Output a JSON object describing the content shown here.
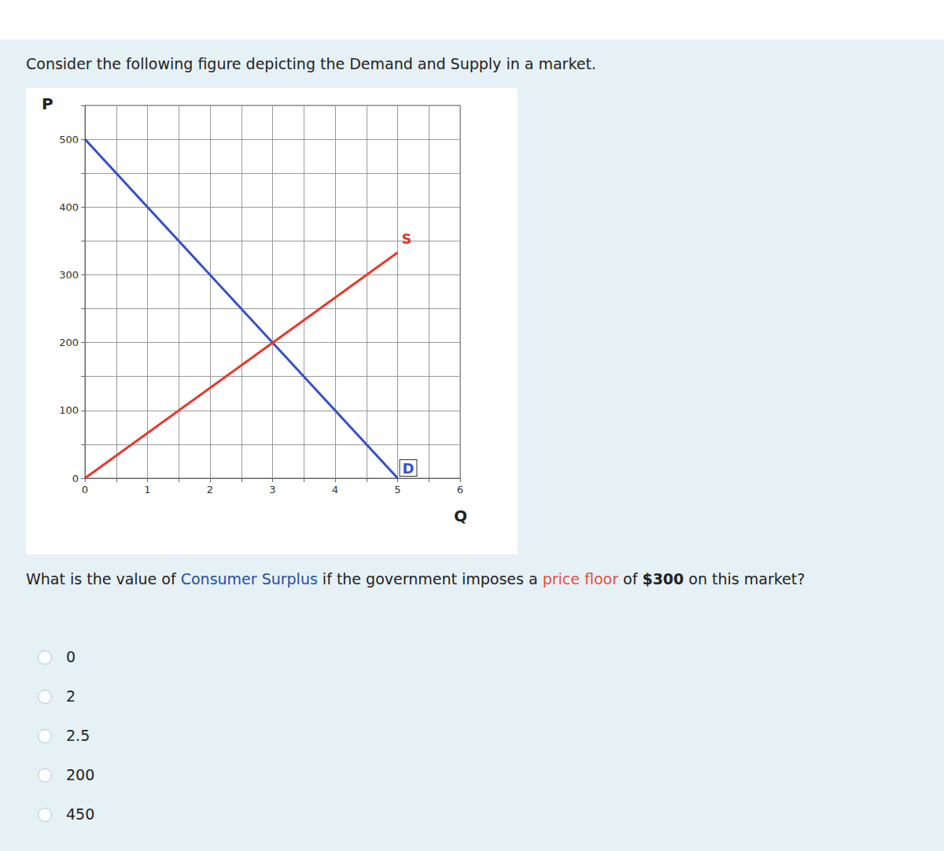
{
  "page": {
    "intro": "Consider the following figure depicting the Demand and Supply in a market.",
    "question": [
      {
        "text": "What is the value of "
      },
      {
        "text": "Consumer Surplus",
        "color": "#1f4fa8"
      },
      {
        "text": " if the government imposes a "
      },
      {
        "text": "price floor",
        "color": "#e0523f"
      },
      {
        "text": " of "
      },
      {
        "text": "$300",
        "bold": true
      },
      {
        "text": " on this market?"
      }
    ],
    "options": [
      "0",
      "2",
      "2.5",
      "200",
      "450"
    ]
  },
  "chart_data": {
    "type": "line",
    "x_label": "Q",
    "y_label": "P",
    "xlim": [
      0,
      6
    ],
    "xticks": [
      0,
      1,
      2,
      3,
      4,
      5,
      6
    ],
    "ylim": [
      0,
      550
    ],
    "yticks": [
      0,
      100,
      200,
      300,
      400,
      500
    ],
    "grid": true,
    "series": [
      {
        "name": "D",
        "color": "#3550c8",
        "x": [
          0,
          5
        ],
        "values": [
          500,
          0
        ]
      },
      {
        "name": "S",
        "color": "#e23b2e",
        "x": [
          0,
          5
        ],
        "values": [
          0,
          333
        ]
      }
    ]
  }
}
